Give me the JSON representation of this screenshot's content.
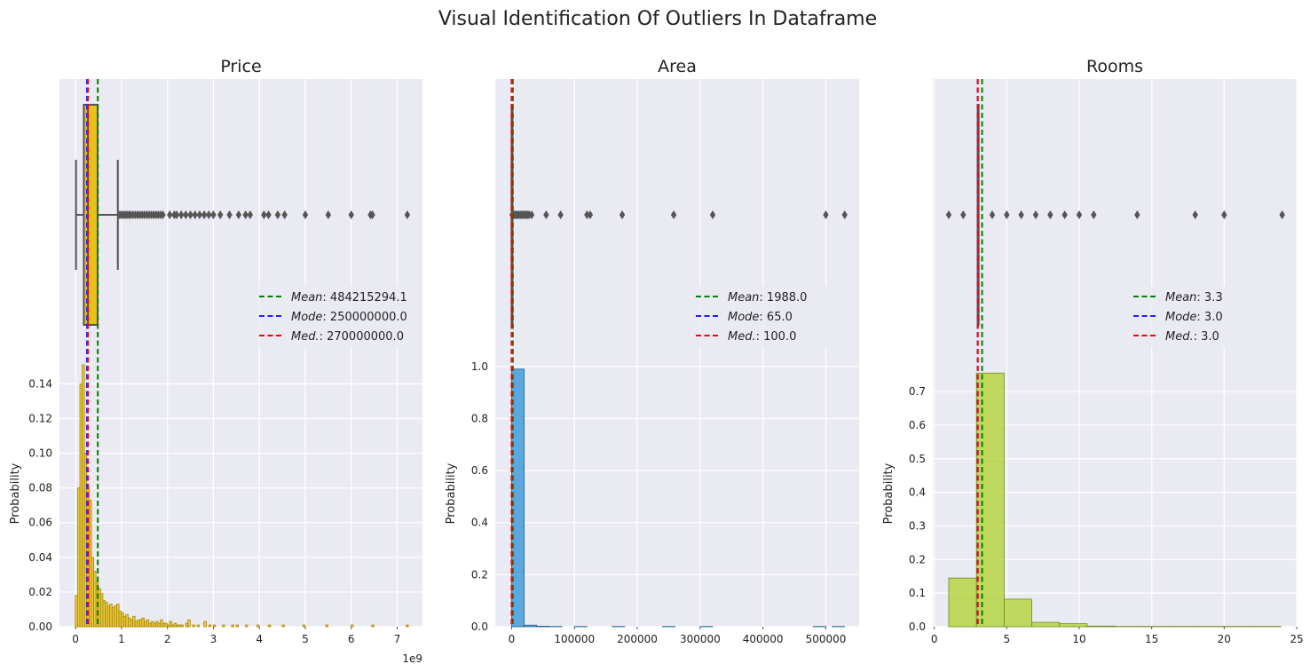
{
  "suptitle": "Visual Identification Of Outliers In Dataframe",
  "chart_data": [
    {
      "type": "box+histogram",
      "title": "Price",
      "xlabel": "",
      "ylabel": "Probability",
      "x_offset_label": "1e9",
      "xlim": [
        -350000000,
        7550000000
      ],
      "ylim": [
        0,
        0.153
      ],
      "xticks": [
        0,
        1000000000,
        2000000000,
        3000000000,
        4000000000,
        5000000000,
        6000000000,
        7000000000
      ],
      "xtick_labels": [
        "0",
        "1",
        "2",
        "3",
        "4",
        "5",
        "6",
        "7"
      ],
      "yticks": [
        0,
        0.02,
        0.04,
        0.06,
        0.08,
        0.1,
        0.12,
        0.14
      ],
      "ytick_labels": [
        "0.00",
        "0.02",
        "0.04",
        "0.06",
        "0.08",
        "0.10",
        "0.12",
        "0.14"
      ],
      "hist_color": "#e8c21a",
      "hist_edge": "#a88600",
      "hist_bin_width": 50000000,
      "hist": [
        [
          20000000,
          0.018
        ],
        [
          70000000,
          0.08
        ],
        [
          120000000,
          0.14
        ],
        [
          170000000,
          0.151
        ],
        [
          220000000,
          0.1
        ],
        [
          270000000,
          0.08
        ],
        [
          320000000,
          0.073
        ],
        [
          370000000,
          0.04
        ],
        [
          420000000,
          0.032
        ],
        [
          470000000,
          0.026
        ],
        [
          520000000,
          0.022
        ],
        [
          570000000,
          0.019
        ],
        [
          620000000,
          0.015
        ],
        [
          670000000,
          0.014
        ],
        [
          720000000,
          0.012
        ],
        [
          770000000,
          0.013
        ],
        [
          820000000,
          0.011
        ],
        [
          870000000,
          0.012
        ],
        [
          920000000,
          0.013
        ],
        [
          970000000,
          0.009
        ],
        [
          1020000000,
          0.008
        ],
        [
          1070000000,
          0.006
        ],
        [
          1120000000,
          0.007
        ],
        [
          1170000000,
          0.005
        ],
        [
          1220000000,
          0.004
        ],
        [
          1270000000,
          0.006
        ],
        [
          1320000000,
          0.003
        ],
        [
          1370000000,
          0.004
        ],
        [
          1420000000,
          0.004
        ],
        [
          1470000000,
          0.005
        ],
        [
          1520000000,
          0.003
        ],
        [
          1570000000,
          0.004
        ],
        [
          1620000000,
          0.002
        ],
        [
          1670000000,
          0.003
        ],
        [
          1720000000,
          0.002
        ],
        [
          1770000000,
          0.003
        ],
        [
          1820000000,
          0.002
        ],
        [
          1870000000,
          0.004
        ],
        [
          1920000000,
          0.002
        ],
        [
          1970000000,
          0.002
        ],
        [
          2020000000,
          0.001
        ],
        [
          2070000000,
          0.003
        ],
        [
          2120000000,
          0.001
        ],
        [
          2170000000,
          0.002
        ],
        [
          2220000000,
          0.001
        ],
        [
          2270000000,
          0.001
        ],
        [
          2320000000,
          0.001
        ],
        [
          2420000000,
          0.002
        ],
        [
          2470000000,
          0.004
        ],
        [
          2570000000,
          0.001
        ],
        [
          2670000000,
          0.001
        ],
        [
          2820000000,
          0.003
        ],
        [
          2920000000,
          0.001
        ],
        [
          3020000000,
          0.001
        ],
        [
          3220000000,
          0.001
        ],
        [
          3420000000,
          0.001
        ],
        [
          3520000000,
          0.001
        ],
        [
          3720000000,
          0.001
        ],
        [
          3970000000,
          0.001
        ],
        [
          4220000000,
          0.001
        ],
        [
          4520000000,
          0.001
        ],
        [
          4970000000,
          0.001
        ],
        [
          5470000000,
          0.001
        ],
        [
          6020000000,
          0.001
        ],
        [
          6470000000,
          0.001
        ],
        [
          7220000000,
          0.001
        ]
      ],
      "box": {
        "whisker_low": 10000000,
        "q1": 180000000,
        "median": 270000000,
        "q3": 480000000,
        "whisker_high": 920000000,
        "box_color": "#e8c21a",
        "outliers": [
          960000000,
          1000000000,
          1040000000,
          1080000000,
          1120000000,
          1160000000,
          1200000000,
          1250000000,
          1300000000,
          1350000000,
          1400000000,
          1450000000,
          1500000000,
          1550000000,
          1600000000,
          1650000000,
          1700000000,
          1750000000,
          1800000000,
          1850000000,
          1900000000,
          2050000000,
          2150000000,
          2200000000,
          2300000000,
          2400000000,
          2500000000,
          2600000000,
          2700000000,
          2800000000,
          2900000000,
          3000000000,
          3150000000,
          3350000000,
          3550000000,
          3700000000,
          3800000000,
          4100000000,
          4200000000,
          4400000000,
          4550000000,
          5000000000,
          5500000000,
          6000000000,
          6420000000,
          6460000000,
          7220000000
        ]
      },
      "vlines": [
        {
          "label": "Mean",
          "value_text": "484215294.1",
          "x": 484215294.1,
          "color": "#008000"
        },
        {
          "label": "Mode",
          "value_text": "250000000.0",
          "x": 250000000,
          "color": "#1f1fff"
        },
        {
          "label": "Med.",
          "value_text": "270000000.0",
          "x": 270000000,
          "color": "#ff0000"
        }
      ],
      "legend_position": "center-right"
    },
    {
      "type": "box+histogram",
      "title": "Area",
      "xlabel": "",
      "ylabel": "Probability",
      "xlim": [
        -26000,
        553000
      ],
      "ylim": [
        0,
        1.02
      ],
      "xticks": [
        0,
        100000,
        200000,
        300000,
        400000,
        500000
      ],
      "xtick_labels": [
        "0",
        "100000",
        "200000",
        "300000",
        "400000",
        "500000"
      ],
      "yticks": [
        0,
        0.2,
        0.4,
        0.6,
        0.8,
        1.0
      ],
      "ytick_labels": [
        "0.0",
        "0.2",
        "0.4",
        "0.6",
        "0.8",
        "1.0"
      ],
      "hist_color": "#3a9ad9",
      "hist_edge": "#1e5f8a",
      "hist_bin_width": 20000,
      "hist": [
        [
          10000,
          0.99
        ],
        [
          30000,
          0.006
        ],
        [
          50000,
          0.002
        ],
        [
          70000,
          0.001
        ],
        [
          110000,
          0.001
        ],
        [
          170000,
          0.001
        ],
        [
          250000,
          0.001
        ],
        [
          310000,
          0.001
        ],
        [
          490000,
          0.001
        ],
        [
          520000,
          0.001
        ]
      ],
      "box": {
        "whisker_low": 10,
        "q1": 60,
        "median": 100,
        "q3": 200,
        "whisker_high": 400,
        "box_color": "#3a9ad9",
        "outliers": [
          1000,
          2500,
          4000,
          6000,
          8000,
          10000,
          12000,
          14000,
          16000,
          18000,
          20000,
          22000,
          24000,
          26000,
          28000,
          32000,
          55000,
          78000,
          120000,
          125000,
          176000,
          258000,
          320000,
          500000,
          530000
        ]
      },
      "vlines": [
        {
          "label": "Mean",
          "value_text": "1988.0",
          "x": 1988,
          "color": "#008000"
        },
        {
          "label": "Mode",
          "value_text": "65.0",
          "x": 65,
          "color": "#1f1fff"
        },
        {
          "label": "Med.",
          "value_text": "100.0",
          "x": 100,
          "color": "#ff0000"
        }
      ],
      "legend_position": "center-right"
    },
    {
      "type": "box+histogram",
      "title": "Rooms",
      "xlabel": "",
      "ylabel": "Probability",
      "xlim": [
        -0.1,
        25
      ],
      "ylim": [
        0,
        0.79
      ],
      "xticks": [
        0,
        5,
        10,
        15,
        20,
        25
      ],
      "xtick_labels": [
        "0",
        "5",
        "10",
        "15",
        "20",
        "25"
      ],
      "yticks": [
        0,
        0.1,
        0.2,
        0.3,
        0.4,
        0.5,
        0.6,
        0.7
      ],
      "ytick_labels": [
        "0.0",
        "0.1",
        "0.2",
        "0.3",
        "0.4",
        "0.5",
        "0.6",
        "0.7"
      ],
      "hist_color": "#b5d43c",
      "hist_edge": "#6f8a20",
      "hist_bin_width": 1.91,
      "hist": [
        [
          1.955,
          0.145
        ],
        [
          3.865,
          0.755
        ],
        [
          5.775,
          0.082
        ],
        [
          7.685,
          0.013
        ],
        [
          9.595,
          0.009
        ],
        [
          11.505,
          0.002
        ],
        [
          13.415,
          0.001
        ],
        [
          15.325,
          0.001
        ],
        [
          17.235,
          0.001
        ],
        [
          19.145,
          0.001
        ],
        [
          21.055,
          0.001
        ],
        [
          22.965,
          0.001
        ]
      ],
      "box": {
        "whisker_low": 3,
        "q1": 3,
        "median": 3,
        "q3": 3,
        "whisker_high": 3,
        "box_color": "#b5d43c",
        "outliers": [
          1,
          2,
          4,
          5,
          6,
          7,
          8,
          9,
          10,
          11,
          14,
          18,
          20,
          24
        ]
      },
      "vlines": [
        {
          "label": "Mean",
          "value_text": "3.3",
          "x": 3.3,
          "color": "#008000"
        },
        {
          "label": "Mode",
          "value_text": "3.0",
          "x": 3.0,
          "color": "#1f1fff"
        },
        {
          "label": "Med.",
          "value_text": "3.0",
          "x": 3.0,
          "color": "#ff0000"
        }
      ],
      "legend_position": "center-right"
    }
  ]
}
